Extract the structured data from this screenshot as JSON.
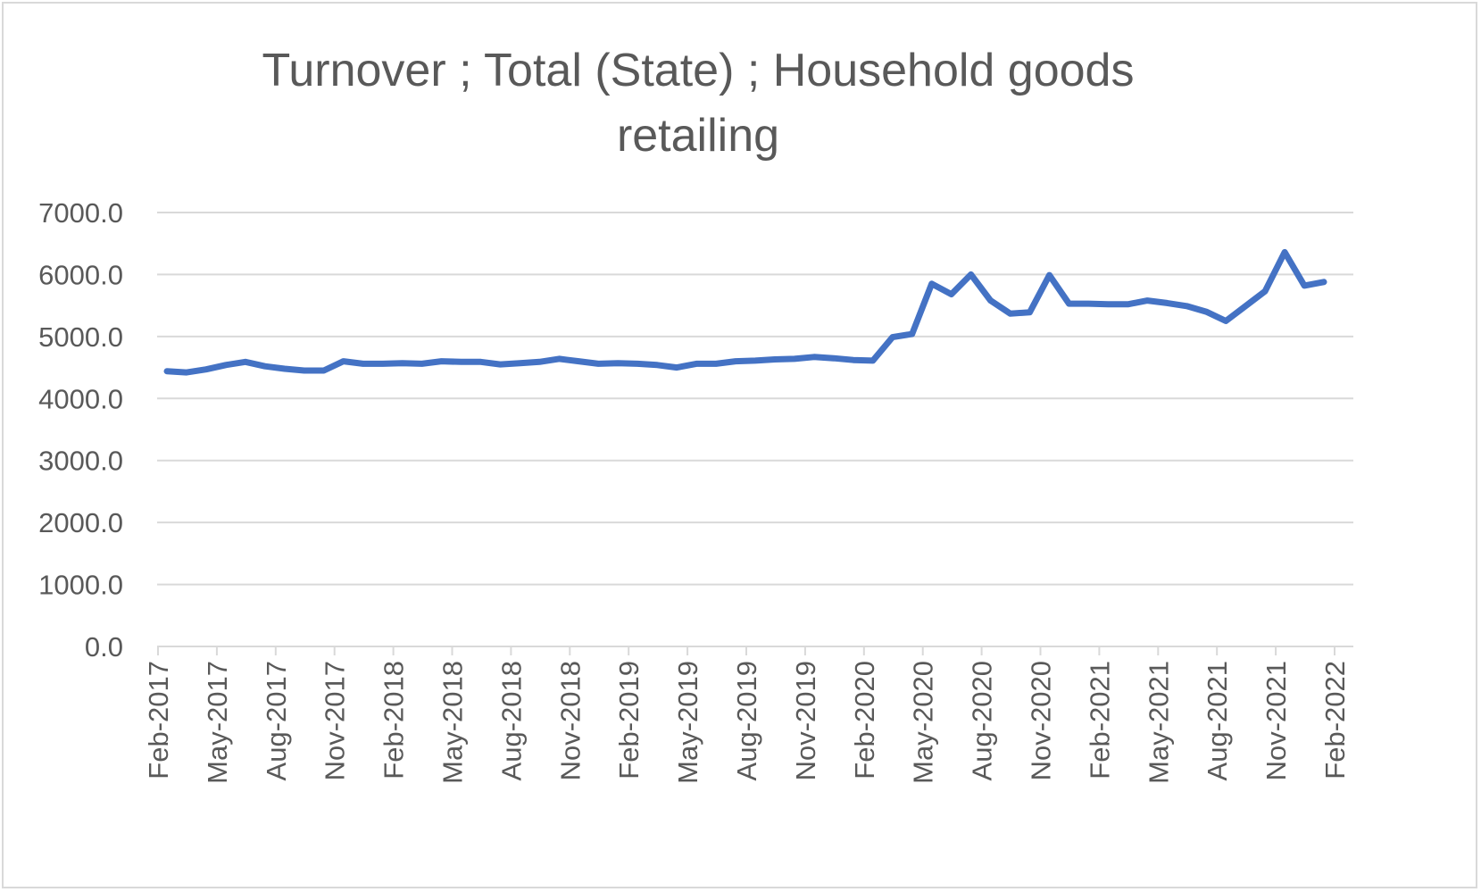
{
  "chart_data": {
    "type": "line",
    "title": "Turnover ;  Total (State) ;  Household goods retailing",
    "title_lines": [
      "Turnover ;  Total (State) ;  Household goods",
      "retailing"
    ],
    "xlabel": "",
    "ylabel": "",
    "ylim": [
      0,
      7000
    ],
    "y_ticks": [
      "0.0",
      "1000.0",
      "2000.0",
      "3000.0",
      "4000.0",
      "5000.0",
      "6000.0",
      "7000.0"
    ],
    "x_tick_labels": [
      "Feb-2017",
      "May-2017",
      "Aug-2017",
      "Nov-2017",
      "Feb-2018",
      "May-2018",
      "Aug-2018",
      "Nov-2018",
      "Feb-2019",
      "May-2019",
      "Aug-2019",
      "Nov-2019",
      "Feb-2020",
      "May-2020",
      "Aug-2020",
      "Nov-2020",
      "Feb-2021",
      "May-2021",
      "Aug-2021",
      "Nov-2021",
      "Feb-2022"
    ],
    "grid": true,
    "legend": "none",
    "line_color": "#4472c4",
    "x": [
      "Feb-2017",
      "Mar-2017",
      "Apr-2017",
      "May-2017",
      "Jun-2017",
      "Jul-2017",
      "Aug-2017",
      "Sep-2017",
      "Oct-2017",
      "Nov-2017",
      "Dec-2017",
      "Jan-2018",
      "Feb-2018",
      "Mar-2018",
      "Apr-2018",
      "May-2018",
      "Jun-2018",
      "Jul-2018",
      "Aug-2018",
      "Sep-2018",
      "Oct-2018",
      "Nov-2018",
      "Dec-2018",
      "Jan-2019",
      "Feb-2019",
      "Mar-2019",
      "Apr-2019",
      "May-2019",
      "Jun-2019",
      "Jul-2019",
      "Aug-2019",
      "Sep-2019",
      "Oct-2019",
      "Nov-2019",
      "Dec-2019",
      "Jan-2020",
      "Feb-2020",
      "Mar-2020",
      "Apr-2020",
      "May-2020",
      "Jun-2020",
      "Jul-2020",
      "Aug-2020",
      "Sep-2020",
      "Oct-2020",
      "Nov-2020",
      "Dec-2020",
      "Jan-2021",
      "Feb-2021",
      "Mar-2021",
      "Apr-2021",
      "May-2021",
      "Jun-2021",
      "Jul-2021",
      "Aug-2021",
      "Sep-2021",
      "Oct-2021",
      "Nov-2021",
      "Dec-2021",
      "Jan-2022"
    ],
    "series": [
      {
        "values": [
          4440,
          4420,
          4470,
          4540,
          4590,
          4520,
          4480,
          4450,
          4450,
          4600,
          4560,
          4560,
          4570,
          4560,
          4600,
          4590,
          4590,
          4550,
          4570,
          4590,
          4640,
          4600,
          4560,
          4570,
          4560,
          4540,
          4500,
          4560,
          4560,
          4600,
          4610,
          4630,
          4640,
          4670,
          4650,
          4620,
          4610,
          4990,
          5040,
          5850,
          5680,
          6000,
          5580,
          5370,
          5390,
          5990,
          5530,
          5530,
          5520,
          5520,
          5580,
          5540,
          5490,
          5400,
          5250,
          5490,
          5730,
          6360,
          5820,
          5880
        ]
      }
    ]
  }
}
